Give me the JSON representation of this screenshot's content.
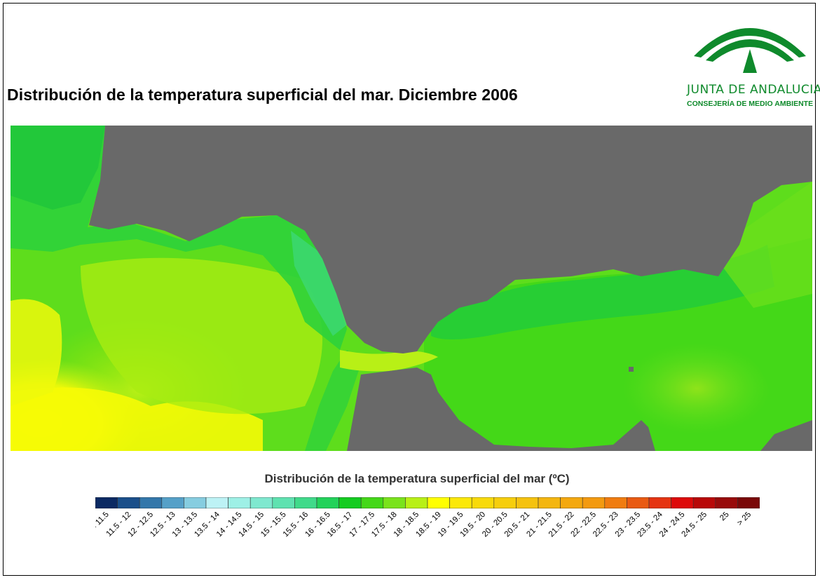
{
  "title": "Distribución de la temperatura superficial del mar. Diciembre 2006",
  "logo": {
    "icon": "junta-andalucia-arches-icon",
    "name": "JUNTA DE ANDALUCIA",
    "subtitle": "CONSEJERÍA DE MEDIO AMBIENTE",
    "color": "#0f8a2c"
  },
  "map": {
    "land_color": "#696969",
    "dominant_colors": [
      "#9ae600",
      "#5edd1c",
      "#2ed23b",
      "#ffff00"
    ]
  },
  "legend": {
    "title": "Distribución de la temperatura superficial del mar (ºC)",
    "classes": [
      {
        "label": "< 11.5",
        "color": "#0b2a63"
      },
      {
        "label": "11.5 - 12",
        "color": "#1a4f8a"
      },
      {
        "label": "12 - 12.5",
        "color": "#3377aa"
      },
      {
        "label": "12.5 - 13",
        "color": "#55a0c8"
      },
      {
        "label": "13 - 13.5",
        "color": "#86cde0"
      },
      {
        "label": "13.5 - 14",
        "color": "#bdf2f5"
      },
      {
        "label": "14 - 14.5",
        "color": "#9ef0e6"
      },
      {
        "label": "14.5 - 15",
        "color": "#7fe8cf"
      },
      {
        "label": "15 - 15.5",
        "color": "#5fe2b0"
      },
      {
        "label": "15.5 - 16",
        "color": "#40da8a"
      },
      {
        "label": "16 - 16.5",
        "color": "#22d25a"
      },
      {
        "label": "16.5 - 17",
        "color": "#14cc20"
      },
      {
        "label": "17 - 17.5",
        "color": "#44d818"
      },
      {
        "label": "17.5 - 18",
        "color": "#7ae31c"
      },
      {
        "label": "18 - 18.5",
        "color": "#b8f016"
      },
      {
        "label": "18.5 - 19",
        "color": "#ffff00"
      },
      {
        "label": "19 - 19.5",
        "color": "#fbe808"
      },
      {
        "label": "19.5 - 20",
        "color": "#f8da0a"
      },
      {
        "label": "20 - 20.5",
        "color": "#f6ce0c"
      },
      {
        "label": "20.5 - 21",
        "color": "#f5c20e"
      },
      {
        "label": "21 - 21.5",
        "color": "#f4b610"
      },
      {
        "label": "21.5 - 22",
        "color": "#f4a80f"
      },
      {
        "label": "22 - 22.5",
        "color": "#f39a10"
      },
      {
        "label": "22.5 - 23",
        "color": "#f07c10"
      },
      {
        "label": "23 - 23.5",
        "color": "#e95a12"
      },
      {
        "label": "23.5 - 24",
        "color": "#e53412"
      },
      {
        "label": "24 - 24.5",
        "color": "#dd0a0a"
      },
      {
        "label": "24.5 - 25",
        "color": "#b80808"
      },
      {
        "label": "25",
        "color": "#980a0a"
      },
      {
        "label": "> 25",
        "color": "#7a0808"
      }
    ]
  }
}
